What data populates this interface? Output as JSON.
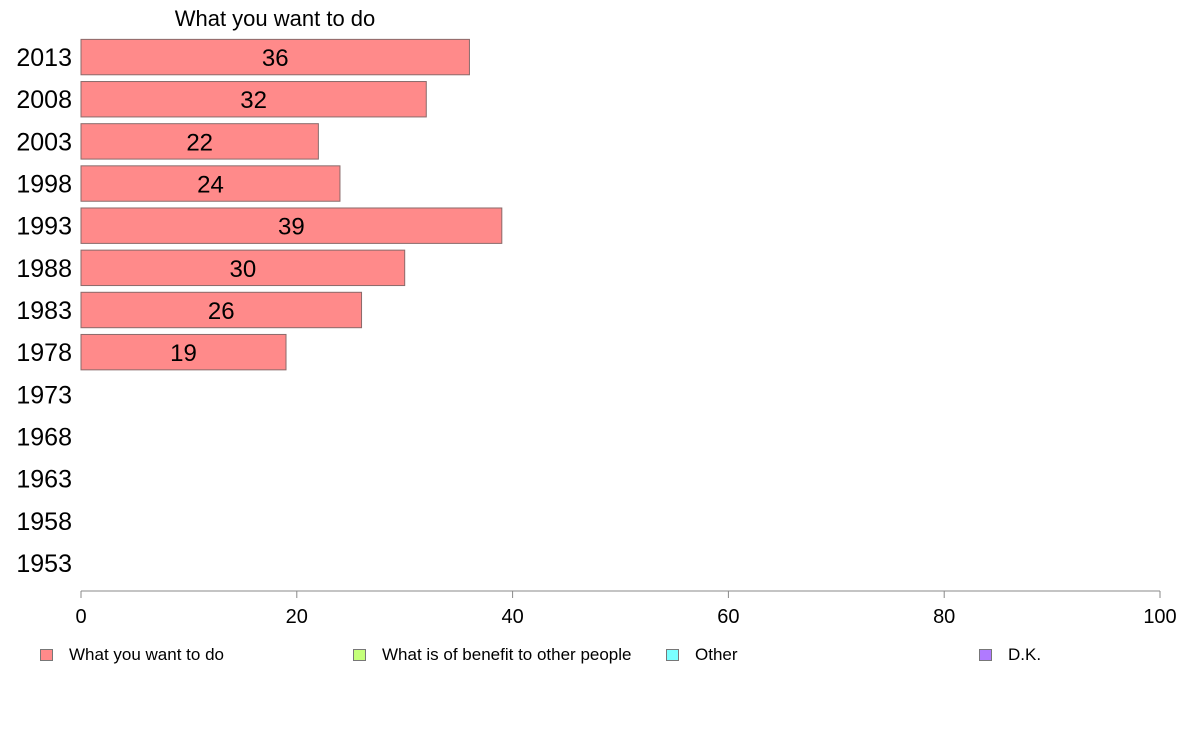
{
  "chart_data": {
    "type": "bar",
    "orientation": "horizontal",
    "title": "What you want to do",
    "categories": [
      "2013",
      "2008",
      "2003",
      "1998",
      "1993",
      "1988",
      "1983",
      "1978",
      "1973",
      "1968",
      "1963",
      "1958",
      "1953"
    ],
    "series": [
      {
        "name": "What you want to do",
        "values": [
          36,
          32,
          22,
          24,
          39,
          30,
          26,
          19,
          null,
          null,
          null,
          null,
          null
        ],
        "color": "#ff8a8a"
      }
    ],
    "xlim": [
      0,
      100
    ],
    "xticks": [
      0,
      20,
      40,
      60,
      80,
      100
    ],
    "grid": false,
    "legend": {
      "placement": "bottom",
      "entries": [
        {
          "label": "What you want to do",
          "color": "#ff8a8a"
        },
        {
          "label": "What is of benefit to other people",
          "color": "#c4ff7a"
        },
        {
          "label": "Other",
          "color": "#7affff"
        },
        {
          "label": "D.K.",
          "color": "#b07aff"
        }
      ]
    }
  }
}
